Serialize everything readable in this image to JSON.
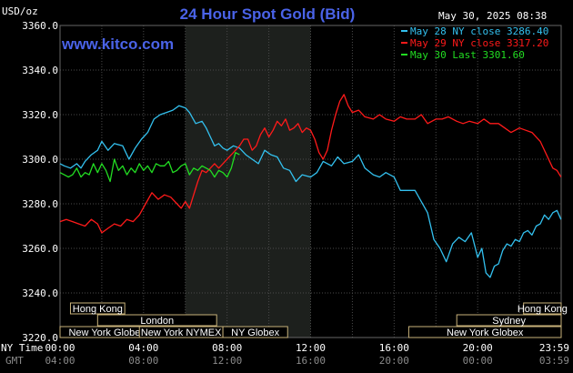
{
  "header": {
    "unit": "USD/oz",
    "title": "24 Hour Spot Gold (Bid)",
    "timestamp": "May 30, 2025 08:38",
    "site": "www.kitco.com"
  },
  "colors": {
    "background": "#000000",
    "grid": "#4a4a4a",
    "highlight": "#1d201d",
    "may28": "#33c0ee",
    "may29": "#ff1a1a",
    "may30": "#22dd22",
    "title": "#4a63e8",
    "market_border": "#c8b27a"
  },
  "axis": {
    "left_top_label": "NY Time",
    "left_bottom_label": "GMT",
    "ny_ticks": [
      "00:00",
      "04:00",
      "08:00",
      "12:00",
      "16:00",
      "20:00",
      "23:59"
    ],
    "gmt_ticks": [
      "04:00",
      "08:00",
      "12:00",
      "16:00",
      "20:00",
      "00:00",
      "03:59"
    ],
    "y_ticks": [
      "3360.0",
      "3340.0",
      "3320.0",
      "3300.0",
      "3280.0",
      "3260.0",
      "3240.0",
      "3220.0"
    ]
  },
  "markets": [
    {
      "label": "Hong Kong",
      "start": 0.5,
      "end": 3.1,
      "row": 0
    },
    {
      "label": "Hong Kong",
      "start": 22.2,
      "end": 24.0,
      "row": 0
    },
    {
      "label": "London",
      "start": 1.8,
      "end": 7.5,
      "row": 1
    },
    {
      "label": "Sydney",
      "start": 19.0,
      "end": 24.0,
      "row": 1
    },
    {
      "label": "New York Globex",
      "start": 0.0,
      "end": 4.5,
      "row": 2
    },
    {
      "label": "New York NYMEX",
      "start": 3.8,
      "end": 7.8,
      "row": 2
    },
    {
      "label": "NY Globex",
      "start": 7.8,
      "end": 10.9,
      "row": 2
    },
    {
      "label": "New York Globex",
      "start": 16.7,
      "end": 24.0,
      "row": 2
    }
  ],
  "chart_data": {
    "type": "line",
    "title": "24 Hour Spot Gold (Bid)",
    "ylabel": "USD/oz",
    "xlabel": "NY Time",
    "ylim": [
      3220,
      3360
    ],
    "xlim": [
      0,
      24
    ],
    "highlight_range": [
      6.0,
      12.0
    ],
    "legend_placement": "top-right",
    "series": [
      {
        "name": "May 28 NY close 3286.40",
        "color": "#33c0ee",
        "x": [
          0,
          0.2,
          0.5,
          0.8,
          1.0,
          1.2,
          1.5,
          1.8,
          2.0,
          2.3,
          2.6,
          3.0,
          3.3,
          3.6,
          3.9,
          4.2,
          4.5,
          4.8,
          5.1,
          5.4,
          5.7,
          6.0,
          6.2,
          6.5,
          6.8,
          7.0,
          7.2,
          7.4,
          7.6,
          7.8,
          8.0,
          8.3,
          8.6,
          8.9,
          9.2,
          9.5,
          9.8,
          10.1,
          10.4,
          10.7,
          11.0,
          11.3,
          11.6,
          12.0,
          12.3,
          12.6,
          13.0,
          13.3,
          13.6,
          14.0,
          14.3,
          14.6,
          15.0,
          15.3,
          15.6,
          16.0,
          16.3,
          16.6,
          17.0,
          17.3,
          17.6,
          17.9,
          18.2,
          18.5,
          18.8,
          19.1,
          19.4,
          19.7,
          20.0,
          20.2,
          20.4,
          20.6,
          20.8,
          21.0,
          21.2,
          21.4,
          21.6,
          21.8,
          22.0,
          22.2,
          22.4,
          22.6,
          22.8,
          23.0,
          23.2,
          23.4,
          23.6,
          23.8,
          23.99
        ],
        "y": [
          3298,
          3297,
          3296,
          3298,
          3296,
          3299,
          3302,
          3304,
          3308,
          3304,
          3307,
          3306,
          3300,
          3305,
          3309,
          3312,
          3318,
          3320,
          3321,
          3322,
          3324,
          3323,
          3321,
          3316,
          3317,
          3314,
          3310,
          3306,
          3307,
          3305,
          3304,
          3306,
          3305,
          3302,
          3300,
          3298,
          3304,
          3302,
          3301,
          3296,
          3295,
          3290,
          3293,
          3292,
          3294,
          3299,
          3297,
          3301,
          3298,
          3299,
          3302,
          3296,
          3293,
          3292,
          3294,
          3292,
          3286,
          3286,
          3286,
          3281,
          3276,
          3264,
          3260,
          3254,
          3262,
          3265,
          3263,
          3267,
          3256,
          3260,
          3249,
          3247,
          3252,
          3253,
          3259,
          3262,
          3261,
          3264,
          3263,
          3267,
          3268,
          3266,
          3270,
          3271,
          3275,
          3273,
          3276,
          3277,
          3273
        ]
      },
      {
        "name": "May 29 NY close 3317.20",
        "color": "#ff1a1a",
        "x": [
          0,
          0.3,
          0.6,
          0.9,
          1.2,
          1.5,
          1.8,
          2.0,
          2.3,
          2.6,
          2.9,
          3.2,
          3.5,
          3.8,
          4.1,
          4.4,
          4.7,
          5.0,
          5.3,
          5.6,
          5.8,
          6.0,
          6.2,
          6.4,
          6.6,
          6.8,
          7.0,
          7.2,
          7.4,
          7.6,
          7.8,
          8.0,
          8.2,
          8.4,
          8.6,
          8.8,
          9.0,
          9.2,
          9.4,
          9.6,
          9.8,
          10.0,
          10.2,
          10.4,
          10.6,
          10.8,
          11.0,
          11.2,
          11.4,
          11.6,
          11.8,
          12.0,
          12.2,
          12.4,
          12.6,
          12.8,
          13.0,
          13.2,
          13.4,
          13.6,
          13.8,
          14.0,
          14.3,
          14.6,
          15.0,
          15.3,
          15.6,
          16.0,
          16.3,
          16.6,
          17.0,
          17.3,
          17.6,
          18.0,
          18.3,
          18.6,
          19.0,
          19.3,
          19.6,
          20.0,
          20.3,
          20.6,
          21.0,
          21.3,
          21.6,
          22.0,
          22.3,
          22.6,
          23.0,
          23.3,
          23.6,
          23.8,
          23.99
        ],
        "y": [
          3272,
          3273,
          3272,
          3271,
          3270,
          3273,
          3271,
          3267,
          3269,
          3271,
          3270,
          3273,
          3272,
          3275,
          3280,
          3285,
          3282,
          3284,
          3283,
          3280,
          3278,
          3281,
          3278,
          3284,
          3290,
          3295,
          3294,
          3296,
          3298,
          3296,
          3298,
          3300,
          3302,
          3304,
          3306,
          3309,
          3309,
          3304,
          3306,
          3311,
          3314,
          3310,
          3313,
          3317,
          3315,
          3318,
          3313,
          3314,
          3316,
          3312,
          3314,
          3313,
          3309,
          3303,
          3300,
          3304,
          3313,
          3320,
          3326,
          3329,
          3324,
          3321,
          3322,
          3319,
          3318,
          3320,
          3318,
          3317,
          3319,
          3318,
          3318,
          3320,
          3316,
          3318,
          3318,
          3319,
          3317,
          3316,
          3317,
          3316,
          3318,
          3316,
          3316,
          3314,
          3312,
          3314,
          3313,
          3312,
          3308,
          3302,
          3296,
          3295,
          3292
        ]
      },
      {
        "name": "May 30 Last 3301.60",
        "color": "#22dd22",
        "x": [
          0,
          0.2,
          0.4,
          0.6,
          0.8,
          1.0,
          1.2,
          1.4,
          1.6,
          1.8,
          2.0,
          2.2,
          2.4,
          2.6,
          2.8,
          3.0,
          3.2,
          3.4,
          3.6,
          3.8,
          4.0,
          4.2,
          4.4,
          4.6,
          4.8,
          5.0,
          5.2,
          5.4,
          5.6,
          5.8,
          6.0,
          6.2,
          6.4,
          6.6,
          6.8,
          7.0,
          7.2,
          7.4,
          7.6,
          7.8,
          8.0,
          8.2,
          8.4,
          8.6
        ],
        "y": [
          3294,
          3293,
          3292,
          3293,
          3296,
          3292,
          3294,
          3293,
          3298,
          3294,
          3298,
          3295,
          3290,
          3300,
          3295,
          3297,
          3293,
          3296,
          3294,
          3298,
          3295,
          3297,
          3294,
          3298,
          3297,
          3297,
          3299,
          3294,
          3295,
          3297,
          3298,
          3293,
          3296,
          3295,
          3297,
          3296,
          3295,
          3292,
          3295,
          3294,
          3292,
          3296,
          3303,
          3302
        ]
      }
    ]
  }
}
